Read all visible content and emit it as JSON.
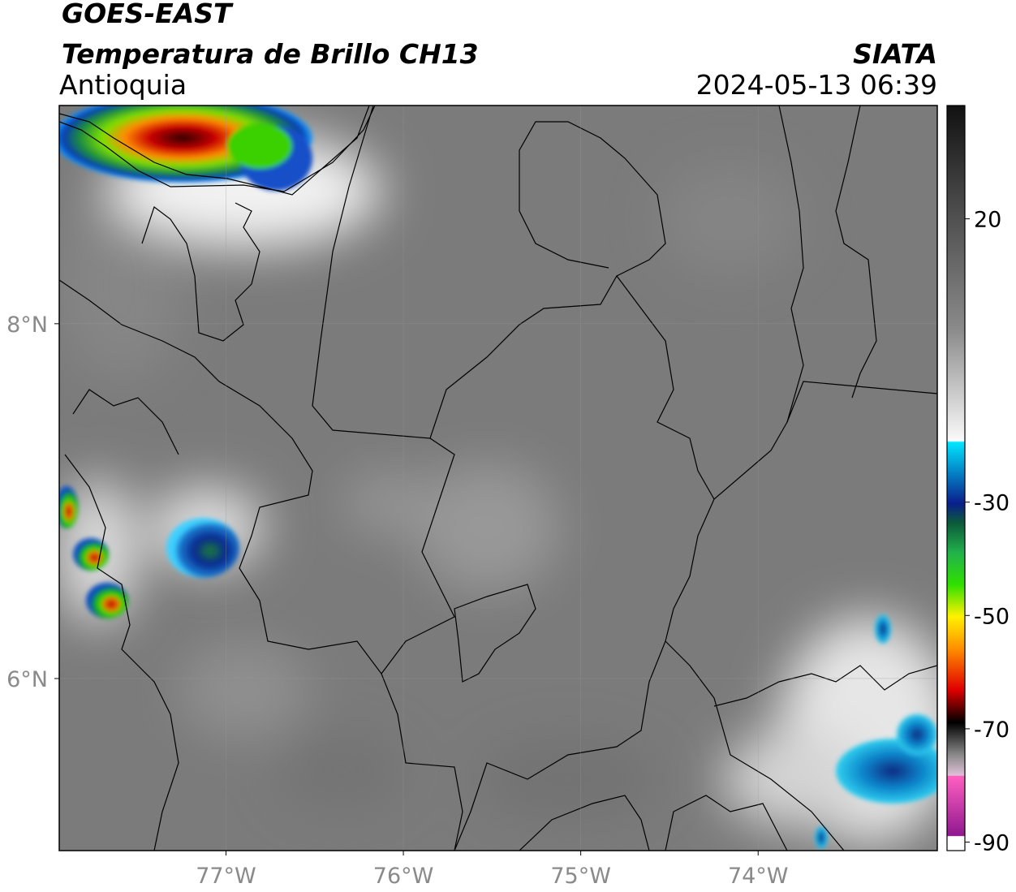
{
  "header": {
    "satellite": "GOES-EAST",
    "product": "Temperatura de Brillo CH13",
    "region": "Antioquia",
    "source": "SIATA",
    "datetime": "2024-05-13 06:39"
  },
  "map": {
    "xlim": [
      -77.94,
      -72.99
    ],
    "ylim": [
      5.03,
      9.23
    ],
    "xticks": [
      {
        "value": -77,
        "label": "77°W"
      },
      {
        "value": -76,
        "label": "76°W"
      },
      {
        "value": -75,
        "label": "75°W"
      },
      {
        "value": -74,
        "label": "74°W"
      }
    ],
    "yticks": [
      {
        "value": 8,
        "label": "8°N"
      },
      {
        "value": 6,
        "label": "6°N"
      }
    ],
    "grid": true
  },
  "colorbar": {
    "lim": [
      -91.5,
      40
    ],
    "ticks": [
      20,
      -30,
      -50,
      -70,
      -90
    ]
  }
}
